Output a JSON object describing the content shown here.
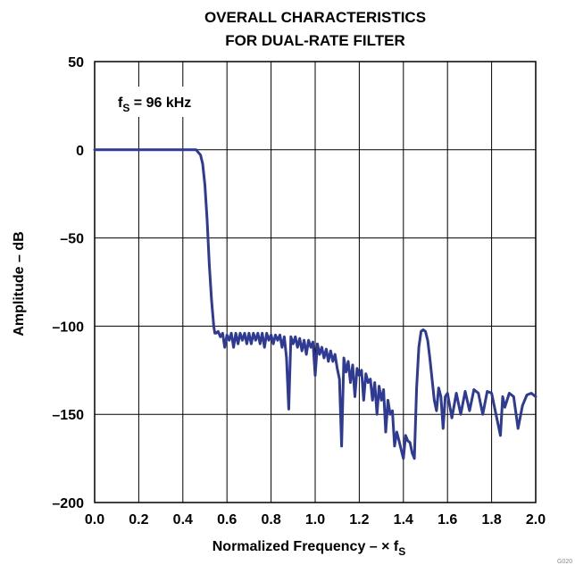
{
  "chart_data": {
    "type": "line",
    "title_lines": [
      "OVERALL CHARACTERISTICS",
      "FOR DUAL-RATE FILTER"
    ],
    "xlabel": "Normalized Frequency – × f",
    "xlabel_sub": "S",
    "ylabel": "Amplitude – dB",
    "xlim": [
      0.0,
      2.0
    ],
    "ylim": [
      -200,
      50
    ],
    "x_ticks": [
      "0.0",
      "0.2",
      "0.4",
      "0.6",
      "0.8",
      "1.0",
      "1.2",
      "1.4",
      "1.6",
      "1.8",
      "2.0"
    ],
    "y_ticks": [
      "50",
      "0",
      "–50",
      "–100",
      "–150",
      "–200"
    ],
    "x_tick_values": [
      0.0,
      0.2,
      0.4,
      0.6,
      0.8,
      1.0,
      1.2,
      1.4,
      1.6,
      1.8,
      2.0
    ],
    "y_tick_values": [
      50,
      0,
      -50,
      -100,
      -150,
      -200
    ],
    "grid": true,
    "annotation": {
      "text": "f",
      "sub": "S",
      "rest": " = 96 kHz"
    },
    "figure_code": "G020",
    "series_color": "#2e3a93",
    "series": [
      {
        "x": [
          0.0,
          0.1,
          0.2,
          0.3,
          0.4,
          0.46,
          0.48,
          0.49,
          0.5,
          0.51,
          0.52,
          0.53,
          0.54,
          0.545,
          0.55,
          0.56,
          0.57,
          0.58,
          0.59,
          0.6,
          0.61,
          0.62,
          0.63,
          0.64,
          0.65,
          0.66,
          0.67,
          0.68,
          0.69,
          0.7,
          0.71,
          0.72,
          0.73,
          0.74,
          0.75,
          0.76,
          0.77,
          0.78,
          0.79,
          0.8,
          0.81,
          0.82,
          0.83,
          0.84,
          0.85,
          0.86,
          0.87,
          0.88,
          0.89,
          0.9,
          0.91,
          0.92,
          0.93,
          0.94,
          0.95,
          0.96,
          0.97,
          0.98,
          0.99,
          1.0,
          1.01,
          1.02,
          1.03,
          1.04,
          1.05,
          1.06,
          1.07,
          1.08,
          1.09,
          1.1,
          1.11,
          1.12,
          1.13,
          1.14,
          1.15,
          1.16,
          1.17,
          1.18,
          1.19,
          1.2,
          1.21,
          1.22,
          1.23,
          1.24,
          1.25,
          1.26,
          1.27,
          1.28,
          1.29,
          1.3,
          1.31,
          1.32,
          1.33,
          1.34,
          1.35,
          1.36,
          1.37,
          1.38,
          1.39,
          1.4,
          1.41,
          1.42,
          1.43,
          1.44,
          1.45,
          1.46,
          1.47,
          1.48,
          1.49,
          1.5,
          1.51,
          1.52,
          1.53,
          1.54,
          1.55,
          1.56,
          1.57,
          1.58,
          1.59,
          1.6,
          1.62,
          1.64,
          1.66,
          1.68,
          1.7,
          1.72,
          1.74,
          1.76,
          1.78,
          1.8,
          1.82,
          1.84,
          1.85,
          1.86,
          1.88,
          1.9,
          1.92,
          1.94,
          1.96,
          1.98,
          2.0
        ],
        "y": [
          0,
          0,
          0,
          0,
          0,
          0,
          -3,
          -8,
          -20,
          -40,
          -65,
          -85,
          -100,
          -104,
          -104,
          -103,
          -106,
          -104,
          -112,
          -105,
          -108,
          -104,
          -112,
          -104,
          -110,
          -104,
          -108,
          -104,
          -110,
          -104,
          -110,
          -104,
          -108,
          -104,
          -110,
          -104,
          -112,
          -104,
          -108,
          -105,
          -110,
          -105,
          -108,
          -105,
          -112,
          -106,
          -118,
          -147,
          -106,
          -110,
          -106,
          -112,
          -107,
          -114,
          -108,
          -116,
          -108,
          -112,
          -109,
          -128,
          -110,
          -116,
          -112,
          -118,
          -113,
          -120,
          -114,
          -120,
          -116,
          -124,
          -130,
          -168,
          -118,
          -126,
          -120,
          -132,
          -122,
          -140,
          -124,
          -128,
          -125,
          -142,
          -127,
          -132,
          -130,
          -142,
          -132,
          -150,
          -134,
          -142,
          -136,
          -160,
          -142,
          -150,
          -148,
          -168,
          -160,
          -165,
          -170,
          -175,
          -162,
          -165,
          -166,
          -172,
          -175,
          -135,
          -112,
          -103,
          -102,
          -103,
          -108,
          -118,
          -130,
          -142,
          -148,
          -135,
          -140,
          -158,
          -140,
          -138,
          -152,
          -138,
          -150,
          -137,
          -148,
          -136,
          -138,
          -150,
          -137,
          -138,
          -150,
          -162,
          -140,
          -146,
          -138,
          -140,
          -158,
          -145,
          -139,
          -138,
          -140
        ]
      }
    ]
  }
}
